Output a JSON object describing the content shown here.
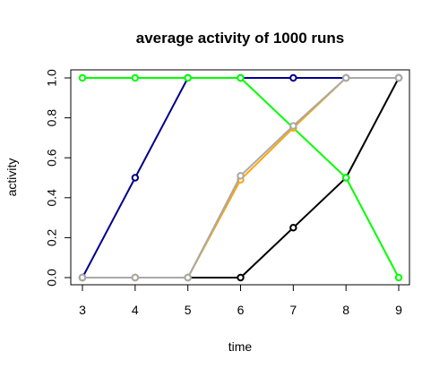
{
  "chart_data": {
    "type": "line",
    "title": "average activity of 1000 runs",
    "xlabel": "time",
    "ylabel": "activity",
    "xlim": [
      3,
      9
    ],
    "ylim": [
      0,
      1
    ],
    "x": [
      3,
      4,
      5,
      6,
      7,
      8,
      9
    ],
    "x_ticks": [
      "3",
      "4",
      "5",
      "6",
      "7",
      "8",
      "9"
    ],
    "y_ticks": [
      "0.0",
      "0.2",
      "0.4",
      "0.6",
      "0.8",
      "1.0"
    ],
    "grid": false,
    "legend": "none",
    "series": [
      {
        "color": "#00008b",
        "values": [
          0,
          0.5,
          1,
          1,
          1,
          1,
          1
        ]
      },
      {
        "color": "#000000",
        "values": [
          0,
          0,
          0,
          0,
          0.25,
          0.5,
          1
        ]
      },
      {
        "color": "#00ff00",
        "values": [
          1,
          1,
          1,
          1,
          0.75,
          0.5,
          0
        ]
      },
      {
        "color": "#ffa500",
        "values": [
          0,
          0,
          0,
          0.49,
          0.75,
          1,
          1
        ]
      },
      {
        "color": "#a9a9a9",
        "values": [
          0,
          0,
          0,
          0.51,
          0.76,
          1,
          1
        ]
      }
    ]
  }
}
